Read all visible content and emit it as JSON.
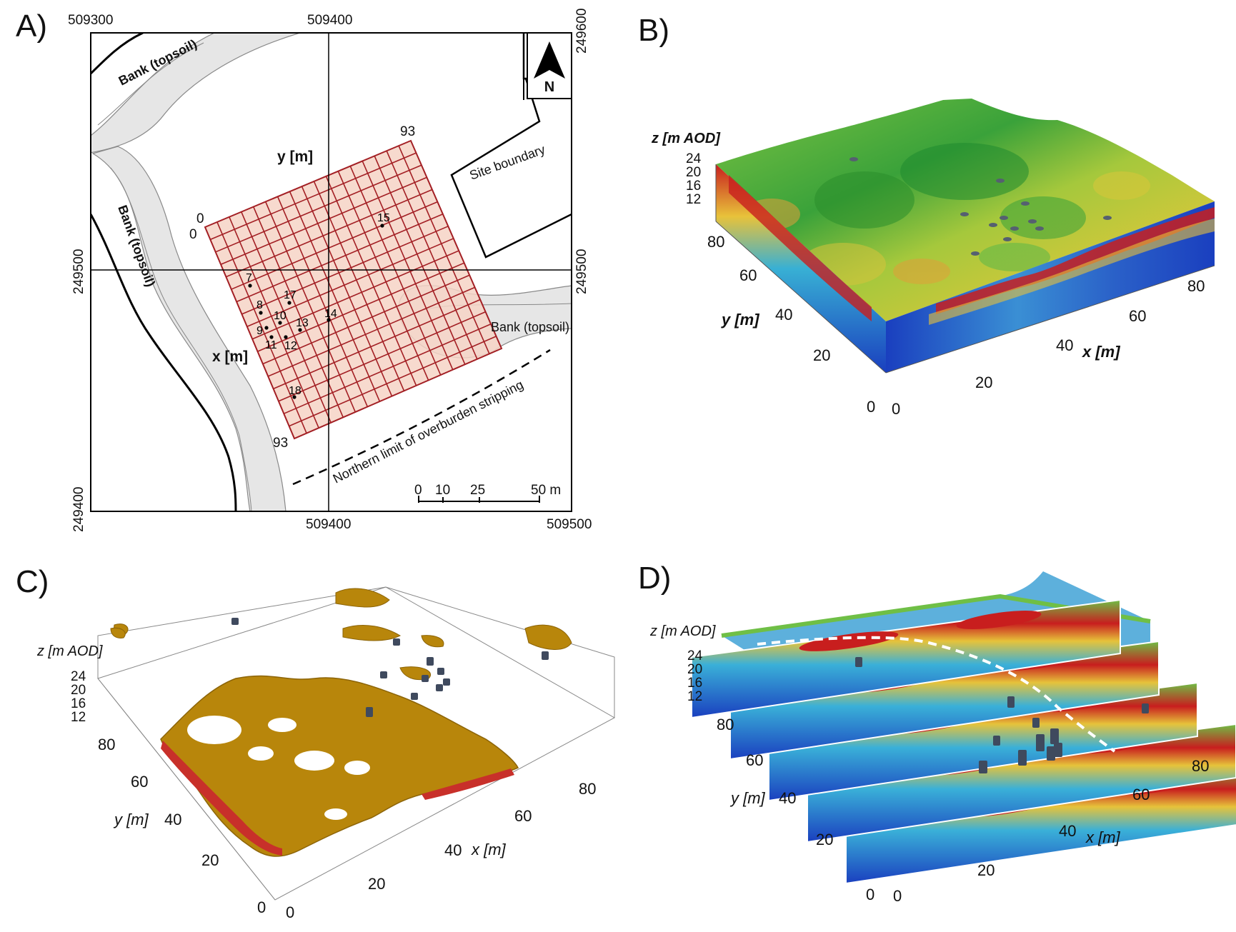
{
  "panels": {
    "a": {
      "letter": "A)",
      "coords": {
        "top_left": "509300",
        "top_mid": "509400",
        "bottom_mid": "509400",
        "bottom_right": "509500",
        "right_top": "249600",
        "right_mid": "249500",
        "left_mid": "249500",
        "left_bottom": "249400"
      },
      "north": "N",
      "banks": [
        "Bank (topsoil)",
        "Bank (topsoil)",
        "Bank (topsoil)"
      ],
      "site_boundary": "Site boundary",
      "overburden": "Northern limit of overburden stripping",
      "y_axis": "y [m]",
      "x_axis": "x [m]",
      "grid_ticks": {
        "y_origin": "0",
        "x_origin": "0",
        "y_end": "93",
        "x_end": "93"
      },
      "points": [
        "7",
        "8",
        "9",
        "10",
        "11",
        "12",
        "13",
        "14",
        "15",
        "17",
        "18"
      ],
      "scale": {
        "t0": "0",
        "t1": "10",
        "t2": "25",
        "t3": "50 m"
      }
    },
    "b": {
      "letter": "B)",
      "z_label": "z [m AOD]",
      "z_ticks": [
        "24",
        "20",
        "16",
        "12"
      ],
      "y_label": "y [m]",
      "y_ticks": [
        "80",
        "60",
        "40",
        "20",
        "0"
      ],
      "x_label": "x [m]",
      "x_ticks": [
        "0",
        "20",
        "40",
        "60",
        "80"
      ]
    },
    "c": {
      "letter": "C)",
      "z_label": "z [m AOD]",
      "z_ticks": [
        "24",
        "20",
        "16",
        "12"
      ],
      "y_label": "y [m]",
      "y_ticks": [
        "80",
        "60",
        "40",
        "20",
        "0"
      ],
      "x_label": "x [m]",
      "x_ticks": [
        "0",
        "20",
        "40",
        "60",
        "80"
      ]
    },
    "d": {
      "letter": "D)",
      "z_label": "z [m AOD]",
      "z_ticks": [
        "24",
        "20",
        "16",
        "12"
      ],
      "y_label": "y [m]",
      "y_ticks": [
        "80",
        "60",
        "40",
        "20",
        "0"
      ],
      "x_label": "x [m]",
      "x_ticks": [
        "0",
        "20",
        "40",
        "60",
        "80"
      ]
    }
  },
  "colors": {
    "grid_line": "#a31f24",
    "grid_fill": "#f6d4c6",
    "bank_fill": "#e4e4e4",
    "isosurface": "#b8860b",
    "resistivity_high": "#c81e1e",
    "resistivity_low": "#1a3fbf"
  }
}
